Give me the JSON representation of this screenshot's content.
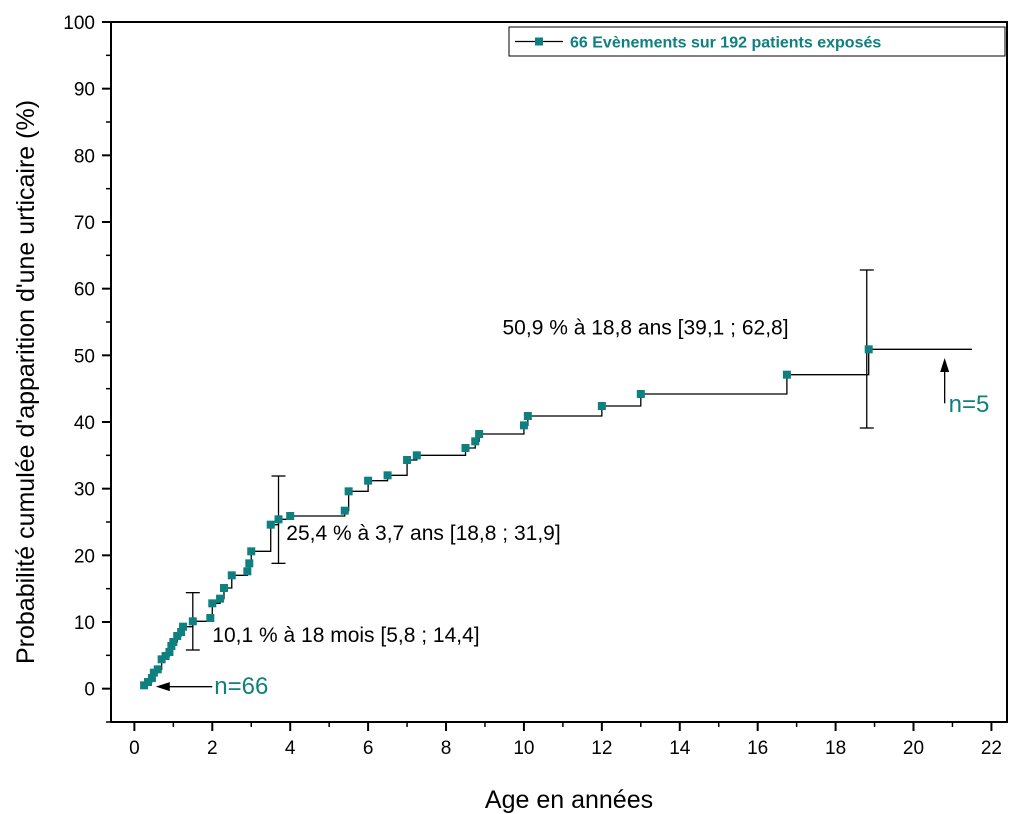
{
  "chart_data": {
    "type": "line",
    "step": true,
    "xlabel": "Age en années",
    "ylabel": "Probabilité cumulée d'apparition d'une urticaire (%)",
    "xlim": [
      -0.6,
      22.4
    ],
    "ylim": [
      -5,
      100
    ],
    "x_ticks": [
      0,
      2,
      4,
      6,
      8,
      10,
      12,
      14,
      16,
      18,
      20,
      22
    ],
    "y_ticks": [
      0,
      10,
      20,
      30,
      40,
      50,
      60,
      70,
      80,
      90,
      100
    ],
    "colors": {
      "series": "#0f8080",
      "axes": "#000000",
      "annotation": "#000000"
    },
    "legend": {
      "position": "top-right",
      "label": "66 Evènements sur 192 patients exposés"
    },
    "series": [
      {
        "name": "66 Evènements sur 192 patients exposés",
        "end_x": 21.5,
        "points": [
          [
            0.25,
            0.5
          ],
          [
            0.35,
            1.0
          ],
          [
            0.45,
            1.6
          ],
          [
            0.5,
            2.4
          ],
          [
            0.6,
            2.9
          ],
          [
            0.7,
            4.4
          ],
          [
            0.8,
            4.9
          ],
          [
            0.9,
            5.5
          ],
          [
            0.95,
            6.4
          ],
          [
            1.0,
            7.0
          ],
          [
            1.1,
            7.9
          ],
          [
            1.2,
            8.5
          ],
          [
            1.25,
            9.3
          ],
          [
            1.5,
            10.1
          ],
          [
            1.95,
            10.6
          ],
          [
            2.0,
            12.8
          ],
          [
            2.2,
            13.5
          ],
          [
            2.3,
            15.1
          ],
          [
            2.5,
            17.0
          ],
          [
            2.9,
            17.6
          ],
          [
            2.95,
            18.8
          ],
          [
            3.0,
            20.6
          ],
          [
            3.5,
            24.6
          ],
          [
            3.7,
            25.4
          ],
          [
            4.0,
            25.9
          ],
          [
            5.4,
            26.7
          ],
          [
            5.5,
            29.6
          ],
          [
            6.0,
            31.2
          ],
          [
            6.5,
            32.0
          ],
          [
            7.0,
            34.3
          ],
          [
            7.25,
            35.0
          ],
          [
            8.5,
            36.1
          ],
          [
            8.75,
            37.1
          ],
          [
            8.85,
            38.2
          ],
          [
            10.0,
            39.5
          ],
          [
            10.1,
            40.9
          ],
          [
            12.0,
            42.4
          ],
          [
            13.0,
            44.2
          ],
          [
            16.75,
            47.1
          ],
          [
            18.85,
            50.9
          ]
        ]
      }
    ],
    "error_bars": [
      {
        "x": 1.5,
        "low": 5.8,
        "high": 14.4
      },
      {
        "x": 3.7,
        "low": 18.8,
        "high": 31.9
      },
      {
        "x": 18.8,
        "low": 39.1,
        "high": 62.8
      }
    ],
    "annotations": [
      {
        "id": "ci18m",
        "text": "10,1 % à 18 mois [5,8 ; 14,4]",
        "x": 2.0,
        "y": 7.0
      },
      {
        "id": "ci37",
        "text": "25,4 % à 3,7 ans [18,8 ; 31,9]",
        "x": 3.9,
        "y": 22.3
      },
      {
        "id": "ci188",
        "text": "50,9 % à 18,8 ans [39,1 ; 62,8]",
        "x": 9.45,
        "y": 53.1
      }
    ],
    "n_labels": [
      {
        "id": "start",
        "text": "n=66",
        "x": 2.05,
        "y": -0.8,
        "arrow_from_x": 2.0,
        "arrow_to_x": 0.55,
        "arrow_y": 0.3
      },
      {
        "id": "end",
        "text": "n=5",
        "x": 20.8,
        "y": 41.5,
        "arrow_x": 20.8,
        "arrow_from_y": 42.8,
        "arrow_to_y": 49.6
      }
    ]
  }
}
